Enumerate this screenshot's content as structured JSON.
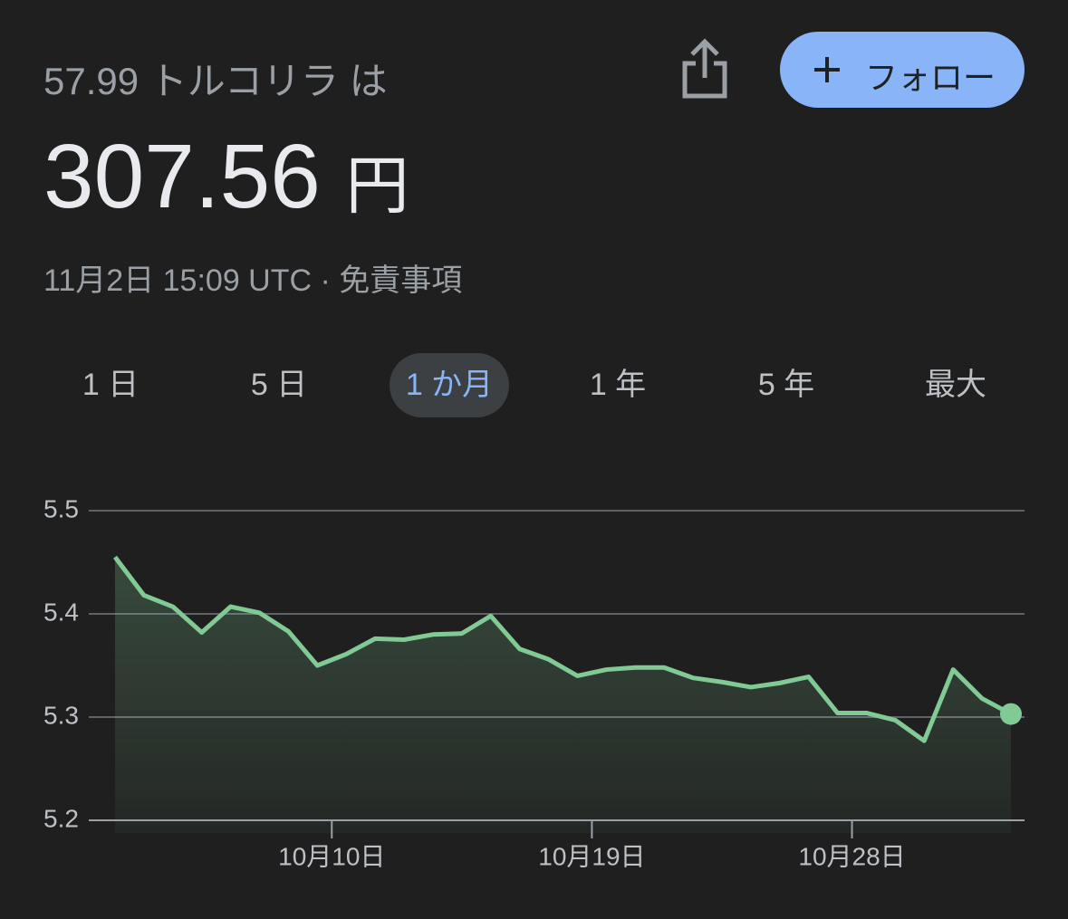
{
  "header": {
    "subtitle": "57.99 トルコリラ は",
    "price": "307.56",
    "currency": "円",
    "timestamp": "11月2日 15:09 UTC",
    "separator": "·",
    "disclaimer": "免責事項",
    "follow": "フォロー"
  },
  "tabs": {
    "items": [
      "1 日",
      "5 日",
      "1 か月",
      "1 年",
      "5 年",
      "最大"
    ],
    "selected": 2
  },
  "chart_data": {
    "type": "area",
    "x": [
      0,
      1,
      2,
      3,
      4,
      5,
      6,
      7,
      8,
      9,
      10,
      11,
      12,
      13,
      14,
      15,
      16,
      17,
      18,
      19,
      20,
      21,
      22,
      23,
      24,
      25,
      26,
      27,
      28,
      29,
      30,
      31
    ],
    "xlim": [
      0,
      31
    ],
    "xticks": [
      {
        "value": 7.5,
        "label": "10月10日"
      },
      {
        "value": 16.5,
        "label": "10月19日"
      },
      {
        "value": 25.5,
        "label": "10月28日"
      }
    ],
    "series": [
      {
        "color": "#81c995",
        "values": [
          5.455,
          5.418,
          5.407,
          5.382,
          5.407,
          5.401,
          5.383,
          5.35,
          5.361,
          5.376,
          5.375,
          5.38,
          5.381,
          5.398,
          5.366,
          5.356,
          5.34,
          5.346,
          5.348,
          5.348,
          5.338,
          5.334,
          5.329,
          5.333,
          5.339,
          5.304,
          5.304,
          5.297,
          5.277,
          5.346,
          5.318,
          5.303
        ]
      }
    ],
    "ylim": [
      5.2,
      5.5
    ],
    "yticks": [
      5.2,
      5.3,
      5.4,
      5.5
    ],
    "grid": true
  }
}
